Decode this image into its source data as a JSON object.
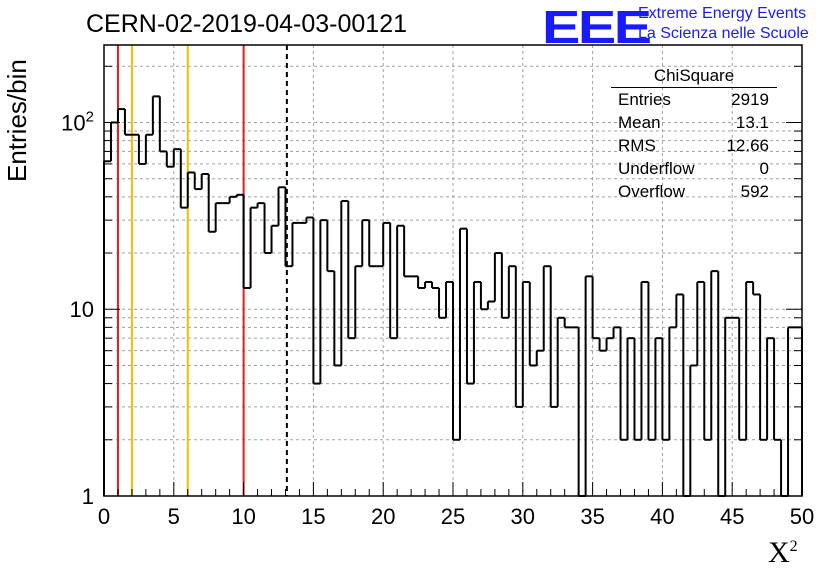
{
  "header": {
    "title": "CERN-02-2019-04-03-00121",
    "logo_text": "EEE",
    "logo_line1": "Extreme Energy Events",
    "logo_line2": "La Scienza nelle Scuole"
  },
  "stats_box": {
    "title": "ChiSquare",
    "rows": [
      {
        "label": "Entries",
        "value": "2919"
      },
      {
        "label": "Mean",
        "value": "13.1"
      },
      {
        "label": "RMS",
        "value": "12.66"
      },
      {
        "label": "Underflow",
        "value": "0"
      },
      {
        "label": "Overflow",
        "value": "592"
      }
    ]
  },
  "colors": {
    "histogram": "#000000",
    "grid": "#a0a0a0",
    "red_line": "#e0201a",
    "yellow_line": "#f0c000",
    "logo": "#1a1aff"
  },
  "chart_data": {
    "type": "histogram",
    "title": "CERN-02-2019-04-03-00121",
    "xlabel": "X",
    "xlabel_superscript": "2",
    "ylabel": "Entries/bin",
    "xlim": [
      0,
      50
    ],
    "ylim": [
      1,
      260
    ],
    "yscale": "log",
    "grid": true,
    "bin_width": 0.5,
    "x_ticks": [
      "0",
      "5",
      "10",
      "15",
      "20",
      "25",
      "30",
      "35",
      "40",
      "45",
      "50"
    ],
    "y_ticks": [
      {
        "base": "1",
        "exp": ""
      },
      {
        "base": "10",
        "exp": ""
      },
      {
        "base": "10",
        "exp": "2"
      }
    ],
    "values": [
      62,
      100,
      118,
      86,
      86,
      60,
      86,
      138,
      70,
      58,
      72,
      35,
      54,
      44,
      53,
      26,
      37,
      37,
      40,
      41,
      13,
      35,
      37,
      20,
      28,
      45,
      17,
      29,
      29,
      31,
      4,
      30,
      16,
      5,
      38,
      7,
      17,
      30,
      17,
      17,
      29,
      7,
      28,
      15,
      15,
      13,
      14,
      13,
      9,
      14,
      2,
      27,
      4,
      14,
      10,
      11,
      20,
      9,
      17,
      3,
      14,
      5,
      6,
      17,
      3,
      9,
      8,
      8,
      1,
      15,
      7,
      6,
      7,
      8,
      2,
      7,
      2,
      14,
      2,
      7,
      2,
      8,
      12,
      1,
      5,
      14,
      2,
      16,
      1,
      9,
      9,
      2,
      14,
      12,
      2,
      7,
      2,
      1,
      8,
      8
    ],
    "vertical_lines": [
      {
        "x": 1,
        "style": "red"
      },
      {
        "x": 2,
        "style": "yellow"
      },
      {
        "x": 6,
        "style": "yellow"
      },
      {
        "x": 10,
        "style": "red"
      },
      {
        "x": 13.1,
        "style": "dashed"
      }
    ]
  }
}
